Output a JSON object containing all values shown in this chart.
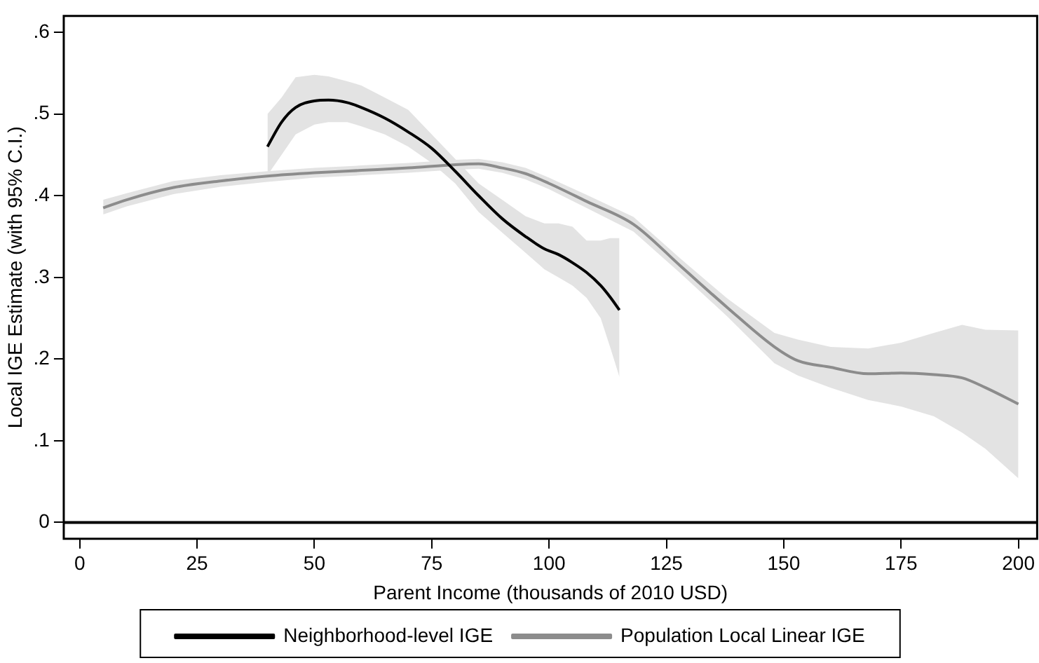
{
  "chart_data": {
    "type": "line",
    "xlabel": "Parent Income (thousands of 2010 USD)",
    "ylabel": "Local IGE Estimate (with 95% C.I.)",
    "xlim": [
      -3.4,
      204
    ],
    "ylim": [
      -0.02,
      0.62
    ],
    "xticks": [
      0,
      25,
      50,
      75,
      100,
      125,
      150,
      175,
      200
    ],
    "yticks": [
      0,
      {
        "value": 0.1,
        "label": ".1"
      },
      {
        "value": 0.2,
        "label": ".2"
      },
      {
        "value": 0.3,
        "label": ".3"
      },
      {
        "value": 0.4,
        "label": ".4"
      },
      {
        "value": 0.5,
        "label": ".5"
      },
      {
        "value": 0.6,
        "label": ".6"
      }
    ],
    "grid": false,
    "legend": "bottom",
    "marker": "none",
    "line_style": "solid",
    "ref_lines": [
      {
        "axis": "y",
        "value": 0,
        "color": "#000000"
      }
    ],
    "series": [
      {
        "name": "Neighborhood-level IGE",
        "color": "#000000",
        "x": [
          40,
          43,
          46,
          50,
          53,
          57,
          60,
          65,
          70,
          75,
          80,
          85,
          90,
          95,
          99,
          102,
          105,
          108,
          111,
          113,
          115
        ],
        "values": [
          0.46,
          0.49,
          0.508,
          0.516,
          0.517,
          0.514,
          0.508,
          0.495,
          0.478,
          0.458,
          0.43,
          0.4,
          0.372,
          0.35,
          0.335,
          0.328,
          0.318,
          0.306,
          0.29,
          0.276,
          0.26
        ],
        "lower": [
          0.425,
          0.45,
          0.475,
          0.487,
          0.49,
          0.49,
          0.485,
          0.475,
          0.46,
          0.44,
          0.415,
          0.38,
          0.355,
          0.33,
          0.31,
          0.3,
          0.29,
          0.275,
          0.25,
          0.215,
          0.178
        ],
        "upper": [
          0.5,
          0.52,
          0.545,
          0.548,
          0.546,
          0.54,
          0.535,
          0.52,
          0.505,
          0.475,
          0.445,
          0.415,
          0.395,
          0.375,
          0.366,
          0.366,
          0.362,
          0.345,
          0.345,
          0.348,
          0.348
        ]
      },
      {
        "name": "Population Local Linear IGE",
        "color": "#8c8c8c",
        "x": [
          5,
          10,
          20,
          30,
          40,
          50,
          60,
          70,
          80,
          85,
          90,
          95,
          100,
          108,
          118,
          128,
          138,
          148,
          153,
          160,
          168,
          175,
          182,
          188,
          193,
          200
        ],
        "values": [
          0.385,
          0.395,
          0.41,
          0.418,
          0.424,
          0.428,
          0.431,
          0.434,
          0.438,
          0.439,
          0.434,
          0.427,
          0.415,
          0.393,
          0.365,
          0.314,
          0.263,
          0.215,
          0.198,
          0.19,
          0.182,
          0.183,
          0.181,
          0.177,
          0.165,
          0.145
        ],
        "lower": [
          0.377,
          0.387,
          0.402,
          0.411,
          0.417,
          0.422,
          0.425,
          0.428,
          0.432,
          0.433,
          0.428,
          0.42,
          0.408,
          0.385,
          0.356,
          0.305,
          0.252,
          0.195,
          0.18,
          0.165,
          0.15,
          0.142,
          0.13,
          0.11,
          0.09,
          0.054
        ],
        "upper": [
          0.395,
          0.403,
          0.418,
          0.425,
          0.43,
          0.434,
          0.437,
          0.44,
          0.444,
          0.445,
          0.441,
          0.434,
          0.422,
          0.401,
          0.374,
          0.323,
          0.274,
          0.232,
          0.224,
          0.215,
          0.213,
          0.22,
          0.232,
          0.242,
          0.236,
          0.235
        ]
      }
    ]
  }
}
